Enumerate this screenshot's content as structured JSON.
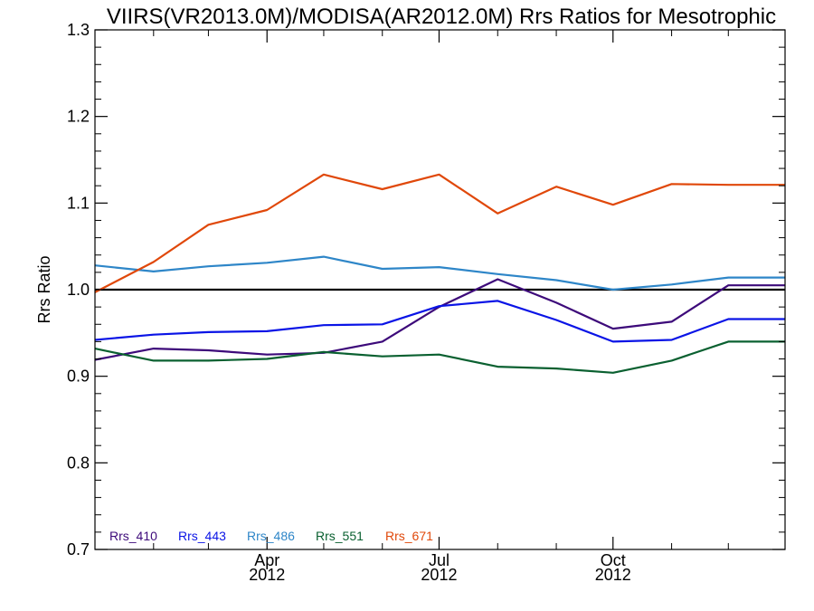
{
  "chart_data": {
    "type": "line",
    "title": "VIIRS(VR2013.0M)/MODISA(AR2012.0M)  Rrs Ratios for Mesotrophic",
    "ylabel": "Rrs Ratio",
    "xlabel": "",
    "ylim": [
      0.7,
      1.3
    ],
    "yticks": [
      "0.7",
      "0.8",
      "0.9",
      "1.0",
      "1.1",
      "1.2",
      "1.3"
    ],
    "xlim": [
      "2012-01-01",
      "2012-12-31"
    ],
    "xticks": [
      {
        "date": "2012-04-01",
        "label_top": "Apr",
        "label_bottom": "2012"
      },
      {
        "date": "2012-07-01",
        "label_top": "Jul",
        "label_bottom": "2012"
      },
      {
        "date": "2012-10-01",
        "label_top": "Oct",
        "label_bottom": "2012"
      }
    ],
    "minor_tick_dates": [
      "2012-02-01",
      "2012-03-01",
      "2012-05-01",
      "2012-06-01",
      "2012-08-01",
      "2012-09-01",
      "2012-11-01",
      "2012-12-01"
    ],
    "reference_line": 1.0,
    "x": [
      "2012-01-01",
      "2012-02-01",
      "2012-03-01",
      "2012-04-01",
      "2012-05-01",
      "2012-06-01",
      "2012-07-01",
      "2012-08-01",
      "2012-09-01",
      "2012-10-01",
      "2012-11-01",
      "2012-12-01",
      "2012-12-31"
    ],
    "series": [
      {
        "name": "Rrs_410",
        "color": "#3d0a7a",
        "values": [
          0.919,
          0.932,
          0.93,
          0.925,
          0.927,
          0.94,
          0.98,
          1.012,
          0.985,
          0.955,
          0.963,
          1.005,
          1.005
        ]
      },
      {
        "name": "Rrs_443",
        "color": "#0a14e6",
        "values": [
          0.942,
          0.948,
          0.951,
          0.952,
          0.959,
          0.96,
          0.981,
          0.987,
          0.965,
          0.94,
          0.942,
          0.966,
          0.966
        ]
      },
      {
        "name": "Rrs_486",
        "color": "#2e86c8",
        "values": [
          1.028,
          1.021,
          1.027,
          1.031,
          1.038,
          1.024,
          1.026,
          1.018,
          1.011,
          1.0,
          1.006,
          1.014,
          1.014
        ]
      },
      {
        "name": "Rrs_551",
        "color": "#0a6030",
        "values": [
          0.932,
          0.918,
          0.918,
          0.92,
          0.928,
          0.923,
          0.925,
          0.911,
          0.909,
          0.904,
          0.918,
          0.94,
          0.94
        ]
      },
      {
        "name": "Rrs_671",
        "color": "#e0480a",
        "values": [
          0.997,
          1.032,
          1.075,
          1.092,
          1.133,
          1.116,
          1.133,
          1.088,
          1.119,
          1.098,
          1.122,
          1.121,
          1.121
        ]
      }
    ],
    "grid": false,
    "legend_position": "bottom-left"
  }
}
